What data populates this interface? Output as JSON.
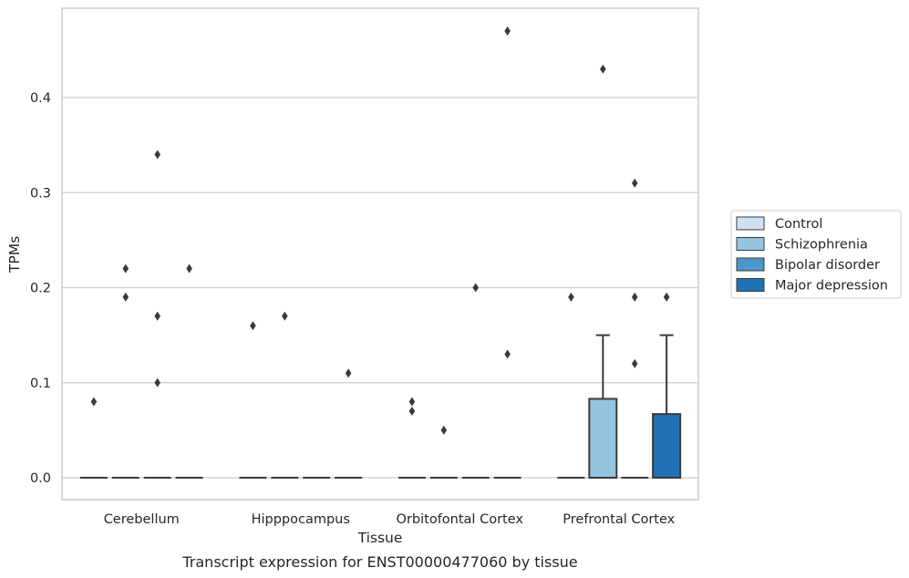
{
  "caption": "Transcript expression for ENST00000477060 by tissue",
  "chart_data": {
    "type": "box",
    "title": "",
    "xlabel": "Tissue",
    "ylabel": "TPMs",
    "ylim": [
      -0.023,
      0.494
    ],
    "yticks": [
      0.0,
      0.1,
      0.2,
      0.3,
      0.4
    ],
    "ytick_labels": [
      "0.0",
      "0.1",
      "0.2",
      "0.3",
      "0.4"
    ],
    "grid": "horizontal",
    "legend_position": "right",
    "categories": [
      "Cerebellum",
      "Hipppocampus",
      "Orbitofontal Cortex",
      "Prefrontal Cortex"
    ],
    "series": [
      {
        "name": "Control",
        "color": "#d0e1f2",
        "boxes": [
          {
            "q1": 0,
            "median": 0,
            "q3": 0,
            "whisker_low": 0,
            "whisker_high": 0,
            "outliers": [
              0.08
            ]
          },
          {
            "q1": 0,
            "median": 0,
            "q3": 0,
            "whisker_low": 0,
            "whisker_high": 0,
            "outliers": [
              0.16
            ]
          },
          {
            "q1": 0,
            "median": 0,
            "q3": 0,
            "whisker_low": 0,
            "whisker_high": 0,
            "outliers": [
              0.08,
              0.07
            ]
          },
          {
            "q1": 0,
            "median": 0,
            "q3": 0,
            "whisker_low": 0,
            "whisker_high": 0,
            "outliers": [
              0.19
            ]
          }
        ]
      },
      {
        "name": "Schizophrenia",
        "color": "#94c4df",
        "boxes": [
          {
            "q1": 0,
            "median": 0,
            "q3": 0,
            "whisker_low": 0,
            "whisker_high": 0,
            "outliers": [
              0.22,
              0.19
            ]
          },
          {
            "q1": 0,
            "median": 0,
            "q3": 0,
            "whisker_low": 0,
            "whisker_high": 0,
            "outliers": [
              0.17
            ]
          },
          {
            "q1": 0,
            "median": 0,
            "q3": 0,
            "whisker_low": 0,
            "whisker_high": 0,
            "outliers": [
              0.05
            ]
          },
          {
            "q1": 0,
            "median": 0,
            "q3": 0.083,
            "whisker_low": 0,
            "whisker_high": 0.15,
            "outliers": [
              0.43
            ]
          }
        ]
      },
      {
        "name": "Bipolar disorder",
        "color": "#4a98c9",
        "boxes": [
          {
            "q1": 0,
            "median": 0,
            "q3": 0,
            "whisker_low": 0,
            "whisker_high": 0,
            "outliers": [
              0.34,
              0.17,
              0.1
            ]
          },
          {
            "q1": 0,
            "median": 0,
            "q3": 0,
            "whisker_low": 0,
            "whisker_high": 0,
            "outliers": []
          },
          {
            "q1": 0,
            "median": 0,
            "q3": 0,
            "whisker_low": 0,
            "whisker_high": 0,
            "outliers": [
              0.2
            ]
          },
          {
            "q1": 0,
            "median": 0,
            "q3": 0,
            "whisker_low": 0,
            "whisker_high": 0,
            "outliers": [
              0.31,
              0.19,
              0.12
            ]
          }
        ]
      },
      {
        "name": "Major depression",
        "color": "#2171b5",
        "boxes": [
          {
            "q1": 0,
            "median": 0,
            "q3": 0,
            "whisker_low": 0,
            "whisker_high": 0,
            "outliers": [
              0.22
            ]
          },
          {
            "q1": 0,
            "median": 0,
            "q3": 0,
            "whisker_low": 0,
            "whisker_high": 0,
            "outliers": [
              0.11
            ]
          },
          {
            "q1": 0,
            "median": 0,
            "q3": 0,
            "whisker_low": 0,
            "whisker_high": 0,
            "outliers": [
              0.47,
              0.13
            ]
          },
          {
            "q1": 0,
            "median": 0,
            "q3": 0.067,
            "whisker_low": 0,
            "whisker_high": 0.15,
            "outliers": [
              0.19
            ]
          }
        ]
      }
    ]
  }
}
